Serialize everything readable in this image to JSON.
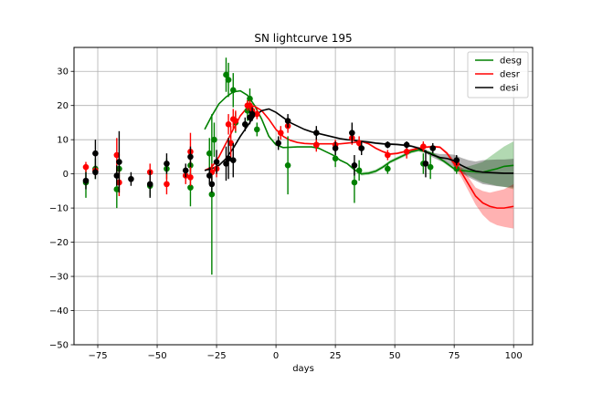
{
  "chart_data": {
    "type": "scatter",
    "title": "SN lightcurve 195",
    "xlabel": "days",
    "ylabel": "",
    "xlim": [
      -85,
      108
    ],
    "ylim": [
      -50,
      37
    ],
    "xticks": [
      -75,
      -50,
      -25,
      0,
      25,
      50,
      75,
      100
    ],
    "yticks": [
      -50,
      -40,
      -30,
      -20,
      -10,
      0,
      10,
      20,
      30
    ],
    "grid": true,
    "legend_position": "top-right",
    "series": [
      {
        "name": "desg",
        "color": "#008000",
        "fit_x": [
          -30,
          -27,
          -24,
          -21,
          -18,
          -15,
          -12,
          -9,
          -6,
          -3,
          0,
          3,
          6,
          9,
          12,
          15,
          18,
          21,
          24,
          27,
          30,
          33,
          36,
          39,
          42,
          45,
          48,
          51,
          54,
          57,
          60,
          63,
          66,
          69,
          72,
          75,
          78,
          81,
          84,
          87,
          90,
          93,
          96,
          100
        ],
        "fit_y": [
          13,
          17,
          20.5,
          22.5,
          24,
          24.3,
          23,
          20,
          16,
          11,
          8.5,
          7.7,
          7.8,
          7.9,
          7.9,
          7.9,
          7.5,
          6.5,
          5.5,
          4,
          3,
          1.2,
          0,
          0.2,
          0.8,
          2,
          3.5,
          4.5,
          5.5,
          6.5,
          7,
          6.5,
          5.8,
          4.5,
          3,
          1.5,
          1.0,
          0.8,
          0.6,
          0.5,
          1,
          1.5,
          2.2,
          2.5
        ],
        "band_lo": [
          13,
          17,
          20.5,
          22.5,
          24,
          24.3,
          23,
          20,
          16,
          11,
          8.5,
          7.7,
          7.8,
          7.9,
          7.9,
          7.9,
          7.5,
          6.5,
          5.5,
          4,
          3,
          1.2,
          -0.5,
          -0.3,
          0.3,
          1.5,
          3,
          4,
          5,
          6,
          6.5,
          6,
          5.3,
          4,
          2.5,
          1,
          0.3,
          -0.5,
          -1.5,
          -2.5,
          -3,
          -3.5,
          -3.8,
          -4.5
        ],
        "band_hi": [
          13,
          17,
          20.5,
          22.5,
          24,
          24.3,
          23,
          20,
          16,
          11,
          8.5,
          7.7,
          7.8,
          7.9,
          7.9,
          7.9,
          7.5,
          6.5,
          5.5,
          4,
          3,
          1.2,
          0.5,
          0.7,
          1.3,
          2.5,
          4,
          5,
          6,
          7,
          7.5,
          7,
          6.3,
          5,
          3.5,
          2,
          1.8,
          2.2,
          2.8,
          3.5,
          5,
          6.5,
          8,
          9.5
        ],
        "points": [
          {
            "x": -80,
            "y": -2.5,
            "err": 4.5
          },
          {
            "x": -76,
            "y": 1.5,
            "err": 3
          },
          {
            "x": -67,
            "y": -4.5,
            "err": 5.5
          },
          {
            "x": -66,
            "y": 1.5,
            "err": 3
          },
          {
            "x": -53,
            "y": -3.5,
            "err": 3
          },
          {
            "x": -46,
            "y": 1.5,
            "err": 3
          },
          {
            "x": -36,
            "y": -4,
            "err": 5.5
          },
          {
            "x": -36,
            "y": 2.5,
            "err": 3.5
          },
          {
            "x": -28,
            "y": 6,
            "err": 4.5
          },
          {
            "x": -27,
            "y": -6,
            "err": 23.5
          },
          {
            "x": -26,
            "y": 10,
            "err": 5
          },
          {
            "x": -21,
            "y": 29,
            "err": 5
          },
          {
            "x": -20,
            "y": 27.5,
            "err": 5
          },
          {
            "x": -18,
            "y": 24.5,
            "err": 5
          },
          {
            "x": -17,
            "y": 15,
            "err": 3
          },
          {
            "x": -12,
            "y": 18.5,
            "err": 3
          },
          {
            "x": -11,
            "y": 22,
            "err": 3
          },
          {
            "x": -8,
            "y": 13,
            "err": 2
          },
          {
            "x": 5,
            "y": 2.5,
            "err": 8.5
          },
          {
            "x": 17,
            "y": 8.5,
            "err": 1.5
          },
          {
            "x": 25,
            "y": 4.5,
            "err": 2.5
          },
          {
            "x": 33,
            "y": -2.5,
            "err": 6
          },
          {
            "x": 35,
            "y": 1,
            "err": 3
          },
          {
            "x": 47,
            "y": 1.5,
            "err": 1.5
          },
          {
            "x": 62,
            "y": 3,
            "err": 3
          },
          {
            "x": 65,
            "y": 2,
            "err": 3.5
          },
          {
            "x": 76,
            "y": 1.5,
            "err": 1.5
          }
        ]
      },
      {
        "name": "desr",
        "color": "#ff0000",
        "fit_x": [
          -30,
          -27,
          -24,
          -21,
          -18,
          -15,
          -12,
          -9,
          -6,
          -3,
          0,
          3,
          6,
          9,
          12,
          15,
          18,
          21,
          24,
          27,
          30,
          33,
          36,
          39,
          42,
          45,
          48,
          51,
          54,
          57,
          60,
          63,
          66,
          69,
          72,
          75,
          78,
          81,
          84,
          87,
          90,
          93,
          96,
          100
        ],
        "fit_y": [
          1,
          2,
          5,
          9,
          13,
          17,
          19.5,
          19.8,
          18.5,
          16,
          13,
          11,
          9.8,
          9.2,
          8.9,
          8.8,
          8.8,
          8.8,
          8.8,
          8.8,
          9,
          9.2,
          9.5,
          8.8,
          7.5,
          6.5,
          5.8,
          6,
          6.5,
          7,
          7.5,
          7.8,
          8,
          7.8,
          6,
          3,
          0.5,
          -3,
          -6.5,
          -8.5,
          -9.5,
          -10,
          -10,
          -9.5
        ],
        "band_lo": [
          1,
          2,
          5,
          9,
          13,
          17,
          19.5,
          19.8,
          18.5,
          16,
          13,
          11,
          9.8,
          9.2,
          8.9,
          8.8,
          8.8,
          8.8,
          8.8,
          8.8,
          9,
          9.2,
          9.2,
          8.5,
          7.2,
          6.2,
          5.5,
          5.7,
          6.2,
          6.7,
          7.2,
          7.5,
          7.7,
          7.5,
          5.5,
          2,
          -1,
          -5,
          -9,
          -12,
          -14,
          -15,
          -15.5,
          -16
        ],
        "band_hi": [
          1,
          2,
          5,
          9,
          13,
          17,
          19.5,
          19.8,
          18.5,
          16,
          13,
          11,
          9.8,
          9.2,
          8.9,
          8.8,
          8.8,
          8.8,
          8.8,
          8.8,
          9,
          9.2,
          9.8,
          9.1,
          7.8,
          6.8,
          6.1,
          6.3,
          6.8,
          7.3,
          7.8,
          8.1,
          8.3,
          8.1,
          6.5,
          4,
          2,
          -1,
          -4,
          -5,
          -5.5,
          -5,
          -4.5,
          -3
        ],
        "points": [
          {
            "x": -80,
            "y": 2,
            "err": 1.5
          },
          {
            "x": -76,
            "y": 1,
            "err": 1.5
          },
          {
            "x": -67,
            "y": 5.5,
            "err": 5
          },
          {
            "x": -66,
            "y": -2.5,
            "err": 4
          },
          {
            "x": -53,
            "y": 0.5,
            "err": 2.5
          },
          {
            "x": -46,
            "y": -3,
            "err": 3
          },
          {
            "x": -38,
            "y": -0.5,
            "err": 2.5
          },
          {
            "x": -36,
            "y": 6.5,
            "err": 5.5
          },
          {
            "x": -36,
            "y": -1,
            "err": 2.5
          },
          {
            "x": -27,
            "y": 0.5,
            "err": 2.5
          },
          {
            "x": -25,
            "y": 1.5,
            "err": 2.5
          },
          {
            "x": -20,
            "y": 14.5,
            "err": 3
          },
          {
            "x": -19,
            "y": 9,
            "err": 5
          },
          {
            "x": -18,
            "y": 16,
            "err": 3
          },
          {
            "x": -17,
            "y": 15.5,
            "err": 3
          },
          {
            "x": -12,
            "y": 20,
            "err": 1.5
          },
          {
            "x": -11,
            "y": 20,
            "err": 1.5
          },
          {
            "x": -10,
            "y": 18.5,
            "err": 1.5
          },
          {
            "x": -8,
            "y": 17.5,
            "err": 1.5
          },
          {
            "x": 2,
            "y": 12,
            "err": 2
          },
          {
            "x": 5,
            "y": 14,
            "err": 2
          },
          {
            "x": 17,
            "y": 8.5,
            "err": 2
          },
          {
            "x": 25,
            "y": 8.5,
            "err": 1.5
          },
          {
            "x": 32,
            "y": 10.5,
            "err": 2
          },
          {
            "x": 35,
            "y": 9,
            "err": 2
          },
          {
            "x": 47,
            "y": 5.5,
            "err": 1.5
          },
          {
            "x": 55,
            "y": 6.5,
            "err": 2
          },
          {
            "x": 62,
            "y": 8,
            "err": 1.5
          },
          {
            "x": 76,
            "y": 3,
            "err": 1.5
          }
        ]
      },
      {
        "name": "desi",
        "color": "#000000",
        "fit_x": [
          -30,
          -27,
          -24,
          -21,
          -18,
          -15,
          -12,
          -9,
          -6,
          -3,
          0,
          3,
          6,
          9,
          12,
          15,
          18,
          21,
          24,
          27,
          30,
          33,
          36,
          39,
          42,
          45,
          48,
          51,
          54,
          57,
          60,
          63,
          66,
          69,
          72,
          75,
          78,
          81,
          84,
          87,
          90,
          93,
          96,
          100
        ],
        "fit_y": [
          1,
          1.5,
          2.5,
          4.5,
          7.5,
          11,
          14,
          17,
          18.5,
          19,
          18,
          16.5,
          15,
          14,
          13,
          12.3,
          11.8,
          11.3,
          10.8,
          10.3,
          10,
          9.8,
          9.5,
          9.3,
          9,
          8.8,
          8.7,
          8.6,
          8.4,
          8.1,
          7.5,
          6.5,
          5.5,
          4.8,
          4.5,
          3.8,
          2.5,
          1.5,
          0.8,
          0.5,
          0.4,
          0.3,
          0.2,
          0.2
        ],
        "band_lo": [
          1,
          1.5,
          2.5,
          4.5,
          7.5,
          11,
          14,
          17,
          18.5,
          19,
          18,
          16.5,
          15,
          14,
          13,
          12.3,
          11.8,
          11.3,
          10.8,
          10.3,
          10,
          9.8,
          9.2,
          9,
          8.7,
          8.5,
          8.4,
          8.3,
          8.1,
          7.8,
          7.1,
          6,
          4.8,
          3.8,
          3.2,
          2,
          0.3,
          -1,
          -2,
          -3,
          -3.3,
          -3.6,
          -3.8,
          -4
        ],
        "band_hi": [
          1,
          1.5,
          2.5,
          4.5,
          7.5,
          11,
          14,
          17,
          18.5,
          19,
          18,
          16.5,
          15,
          14,
          13,
          12.3,
          11.8,
          11.3,
          10.8,
          10.3,
          10,
          9.8,
          9.8,
          9.6,
          9.3,
          9.1,
          9,
          8.9,
          8.7,
          8.4,
          7.9,
          7,
          6.2,
          5.8,
          5.8,
          5.6,
          4.7,
          4,
          3.6,
          4,
          4.1,
          4.2,
          4.2,
          4.4
        ],
        "points": [
          {
            "x": -80,
            "y": -2,
            "err": 2.5
          },
          {
            "x": -76,
            "y": 6,
            "err": 4
          },
          {
            "x": -76,
            "y": 0.5,
            "err": 2
          },
          {
            "x": -67,
            "y": -0.5,
            "err": 3
          },
          {
            "x": -66,
            "y": 3.5,
            "err": 9
          },
          {
            "x": -61,
            "y": -1.5,
            "err": 2
          },
          {
            "x": -53,
            "y": -3,
            "err": 4
          },
          {
            "x": -46,
            "y": 3,
            "err": 3
          },
          {
            "x": -38,
            "y": 1,
            "err": 2
          },
          {
            "x": -36,
            "y": 5,
            "err": 3
          },
          {
            "x": -28,
            "y": -0.5,
            "err": 2.5
          },
          {
            "x": -27,
            "y": -3,
            "err": 2.5
          },
          {
            "x": -25,
            "y": 3.5,
            "err": 3.5
          },
          {
            "x": -21,
            "y": 3,
            "err": 5
          },
          {
            "x": -20,
            "y": 4.5,
            "err": 6
          },
          {
            "x": -18,
            "y": 4,
            "err": 5
          },
          {
            "x": -13,
            "y": 14.5,
            "err": 2
          },
          {
            "x": -11,
            "y": 16.5,
            "err": 2
          },
          {
            "x": -10,
            "y": 17.5,
            "err": 2
          },
          {
            "x": 1,
            "y": 9,
            "err": 2
          },
          {
            "x": 5,
            "y": 15.5,
            "err": 2
          },
          {
            "x": 17,
            "y": 12,
            "err": 2
          },
          {
            "x": 25,
            "y": 7.5,
            "err": 2
          },
          {
            "x": 32,
            "y": 12,
            "err": 3
          },
          {
            "x": 33,
            "y": 2.5,
            "err": 3
          },
          {
            "x": 36,
            "y": 7.5,
            "err": 2
          },
          {
            "x": 47,
            "y": 8.5,
            "err": 1
          },
          {
            "x": 55,
            "y": 8.5,
            "err": 1
          },
          {
            "x": 63,
            "y": 3,
            "err": 4
          },
          {
            "x": 66,
            "y": 7.5,
            "err": 1.5
          },
          {
            "x": 76,
            "y": 4,
            "err": 1.5
          }
        ]
      }
    ]
  }
}
